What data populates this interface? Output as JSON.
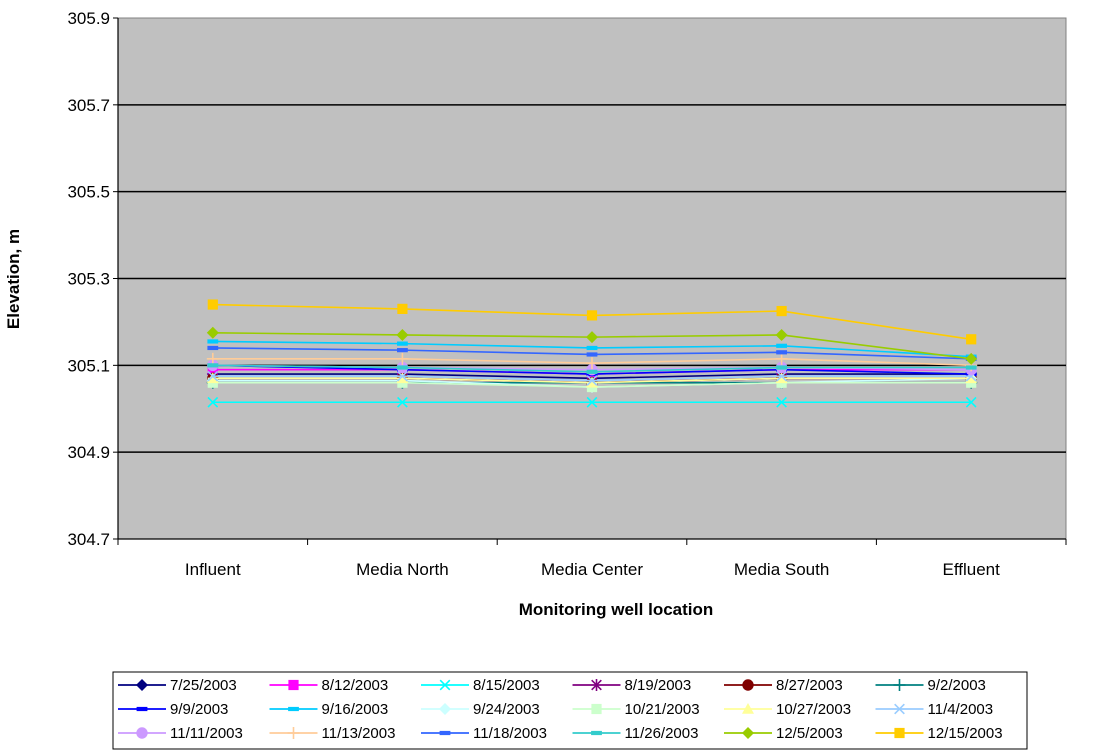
{
  "chart_data": {
    "type": "line",
    "title": "",
    "xlabel": "Monitoring well location",
    "ylabel": "Elevation, m",
    "categories": [
      "Influent",
      "Media North",
      "Media Center",
      "Media South",
      "Effluent"
    ],
    "ylim": [
      304.7,
      305.9
    ],
    "yticks": [
      "305.9",
      "305.7",
      "305.5",
      "305.3",
      "305.1",
      "304.9",
      "304.7"
    ],
    "grid": "horizontal",
    "plot_background": "#C0C0C0",
    "legend_position": "bottom",
    "series": [
      {
        "name": "7/25/2003",
        "color": "#000080",
        "marker": "diamond",
        "values": [
          305.08,
          305.08,
          305.07,
          305.08,
          305.08
        ]
      },
      {
        "name": "8/12/2003",
        "color": "#FF00FF",
        "marker": "square",
        "values": [
          305.09,
          305.09,
          305.08,
          305.09,
          305.09
        ]
      },
      {
        "name": "8/15/2003",
        "color": "#00FFFF",
        "marker": "x",
        "values": [
          305.015,
          305.015,
          305.015,
          305.015,
          305.015
        ]
      },
      {
        "name": "8/19/2003",
        "color": "#800080",
        "marker": "star",
        "values": [
          305.07,
          305.07,
          305.06,
          305.07,
          305.07
        ]
      },
      {
        "name": "8/27/2003",
        "color": "#800000",
        "marker": "circle",
        "values": [
          305.07,
          305.07,
          305.06,
          305.07,
          305.07
        ]
      },
      {
        "name": "9/2/2003",
        "color": "#008080",
        "marker": "plus",
        "values": [
          305.06,
          305.06,
          305.06,
          305.06,
          305.06
        ]
      },
      {
        "name": "9/9/2003",
        "color": "#0000FF",
        "marker": "dash",
        "values": [
          305.1,
          305.09,
          305.08,
          305.09,
          305.08
        ]
      },
      {
        "name": "9/16/2003",
        "color": "#00CCFF",
        "marker": "dash",
        "values": [
          305.155,
          305.15,
          305.14,
          305.145,
          305.12
        ]
      },
      {
        "name": "9/24/2003",
        "color": "#CCFFFF",
        "marker": "diamond",
        "values": [
          305.065,
          305.065,
          305.05,
          305.06,
          305.07
        ]
      },
      {
        "name": "10/21/2003",
        "color": "#CCFFCC",
        "marker": "square",
        "values": [
          305.06,
          305.06,
          305.05,
          305.06,
          305.06
        ]
      },
      {
        "name": "10/27/2003",
        "color": "#FFFF99",
        "marker": "triangle",
        "values": [
          305.07,
          305.07,
          305.06,
          305.07,
          305.07
        ]
      },
      {
        "name": "11/4/2003",
        "color": "#99CCFF",
        "marker": "x",
        "values": [
          305.075,
          305.075,
          305.065,
          305.075,
          305.075
        ]
      },
      {
        "name": "11/11/2003",
        "color": "#CC99FF",
        "marker": "circle",
        "values": [
          305.1,
          305.095,
          305.09,
          305.095,
          305.09
        ]
      },
      {
        "name": "11/13/2003",
        "color": "#FFCC99",
        "marker": "plus",
        "values": [
          305.115,
          305.115,
          305.105,
          305.115,
          305.1
        ]
      },
      {
        "name": "11/18/2003",
        "color": "#3366FF",
        "marker": "dash",
        "values": [
          305.14,
          305.135,
          305.125,
          305.13,
          305.115
        ]
      },
      {
        "name": "11/26/2003",
        "color": "#33CCCC",
        "marker": "dash",
        "values": [
          305.1,
          305.095,
          305.085,
          305.095,
          305.095
        ]
      },
      {
        "name": "12/5/2003",
        "color": "#99CC00",
        "marker": "diamond",
        "values": [
          305.175,
          305.17,
          305.165,
          305.17,
          305.115
        ]
      },
      {
        "name": "12/15/2003",
        "color": "#FFCC00",
        "marker": "square",
        "values": [
          305.24,
          305.23,
          305.215,
          305.225,
          305.16
        ]
      }
    ]
  }
}
